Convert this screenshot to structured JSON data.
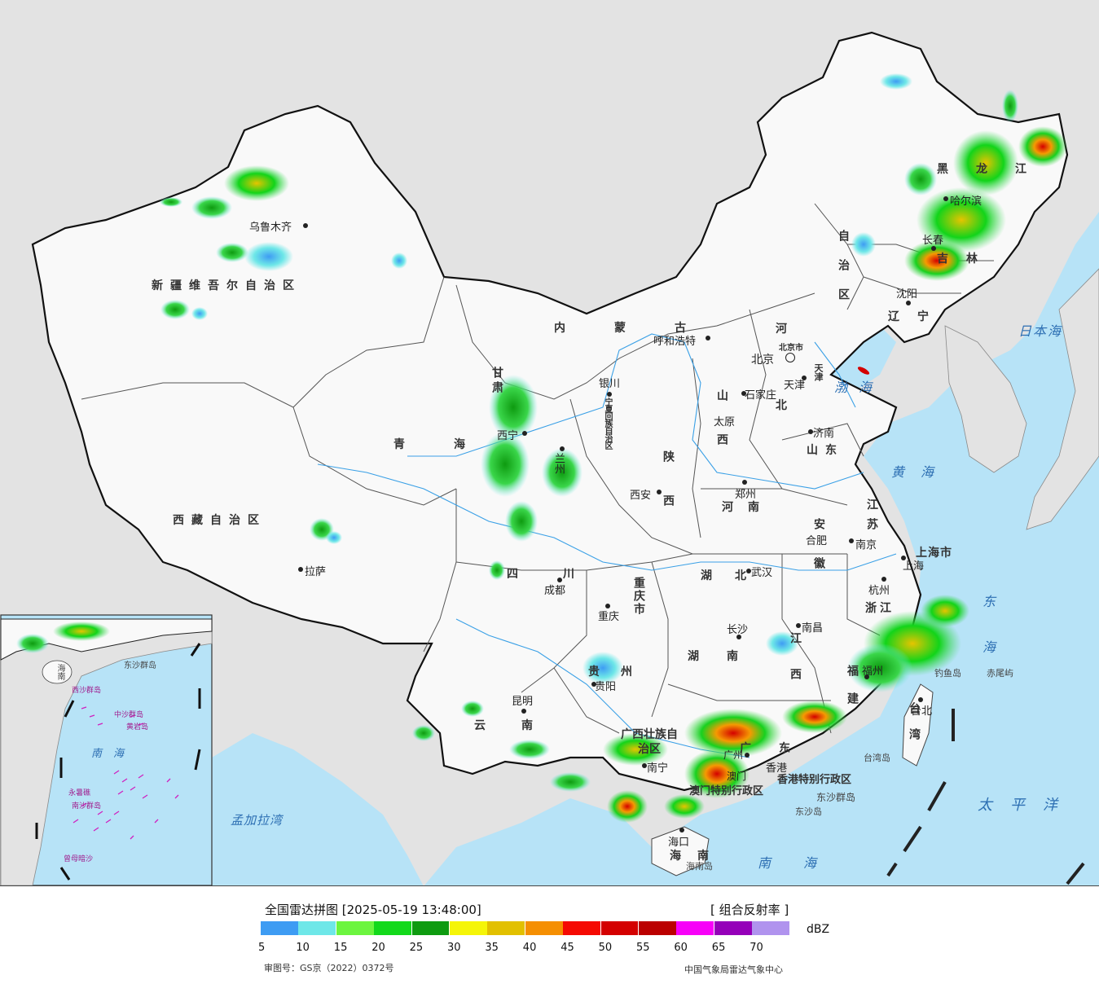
{
  "legend": {
    "title": "全国雷达拼图 [2025-05-19 13:48:00]",
    "product": "[ 组合反射率 ]",
    "unit": "dBZ",
    "ticks": [
      "5",
      "10",
      "15",
      "20",
      "25",
      "30",
      "35",
      "40",
      "45",
      "50",
      "55",
      "60",
      "65",
      "70"
    ],
    "colors": [
      "#3e9cf3",
      "#6ee7e8",
      "#6cf53f",
      "#13d91b",
      "#0e9b10",
      "#f5f508",
      "#e2c000",
      "#f58f02",
      "#f50a03",
      "#d40000",
      "#bb0000",
      "#f700f8",
      "#9500b9",
      "#b093ee"
    ],
    "approval": "审图号：GS京（2022）0372号",
    "agency": "中国气象局雷达气象中心"
  },
  "provinces": {
    "xinjiang": "新疆维吾尔自治区",
    "xizang": "西藏自治区",
    "qinghai": "青海",
    "gansu": "甘肃",
    "neimenggu_1": "内蒙古",
    "neimenggu_2": "自治区",
    "heilongjiang": "黑龙江",
    "jilin": "吉林",
    "liaoning": "辽宁",
    "hebei_1": "河",
    "hebei_2": "北",
    "shanxi": "山西",
    "shaanxi": "陕西",
    "ningxia": "宁夏回族自治区",
    "shandong": "山东",
    "henan": "河南",
    "jiangsu": "江苏",
    "anhui": "安徽",
    "hubei": "湖北",
    "sichuan": "四川",
    "chongqing": "重庆市",
    "zhejiang": "浙江",
    "jiangxi": "江西",
    "hunan": "湖南",
    "guizhou": "贵州",
    "fujian": "福建",
    "yunnan": "云南",
    "guangxi": "广西壮族自治区",
    "guangdong": "广东",
    "hainan": "海南",
    "taiwan": "台湾",
    "shanghai": "上海市",
    "beijing": "北京市",
    "tianjin": "天津",
    "hongkong": "香港特别行政区",
    "macau": "澳门特别行政区"
  },
  "cities": {
    "urumqi": "乌鲁木齐",
    "lhasa": "拉萨",
    "xining": "西宁",
    "lanzhou": "兰州",
    "yinchuan": "银川",
    "hohhot": "呼和浩特",
    "beijing": "北京",
    "tianjin": "天津",
    "shijiazhuang": "石家庄",
    "taiyuan": "太原",
    "jinan": "济南",
    "zhengzhou": "郑州",
    "xian": "西安",
    "hefei": "合肥",
    "nanjing": "南京",
    "shanghai": "上海",
    "hangzhou": "杭州",
    "wuhan": "武汉",
    "chengdu": "成都",
    "chongqing": "重庆",
    "changsha": "长沙",
    "nanchang": "南昌",
    "fuzhou": "福州",
    "guiyang": "贵阳",
    "kunming": "昆明",
    "nanning": "南宁",
    "guangzhou": "广州",
    "hongkong": "香港",
    "macau": "澳门",
    "haikou": "海口",
    "taipei": "台北",
    "harbin": "哈尔滨",
    "changchun": "长春",
    "shenyang": "沈阳"
  },
  "seas": {
    "japan": "日本海",
    "bohai": "渤海",
    "yellow": "黄海",
    "east": "东海",
    "south": "南海",
    "pacific": "太平洋",
    "bengal": "孟加拉湾"
  },
  "islands": {
    "diaoyu": "钓鱼岛",
    "chiwei": "赤尾屿",
    "dongsha_group": "东沙群岛",
    "dongsha": "东沙岛",
    "taiwan_island": "台湾岛",
    "hainan_island": "海南岛"
  },
  "inset": {
    "hainan": "海南",
    "xisha": "西沙群岛",
    "zhongsha": "中沙群岛",
    "huangyan": "黄岩岛",
    "nansha": "南沙群岛",
    "zengmu": "曾母暗沙",
    "yongshu": "永暑礁",
    "south_sea": "南海",
    "dongsha": "东沙群岛"
  }
}
